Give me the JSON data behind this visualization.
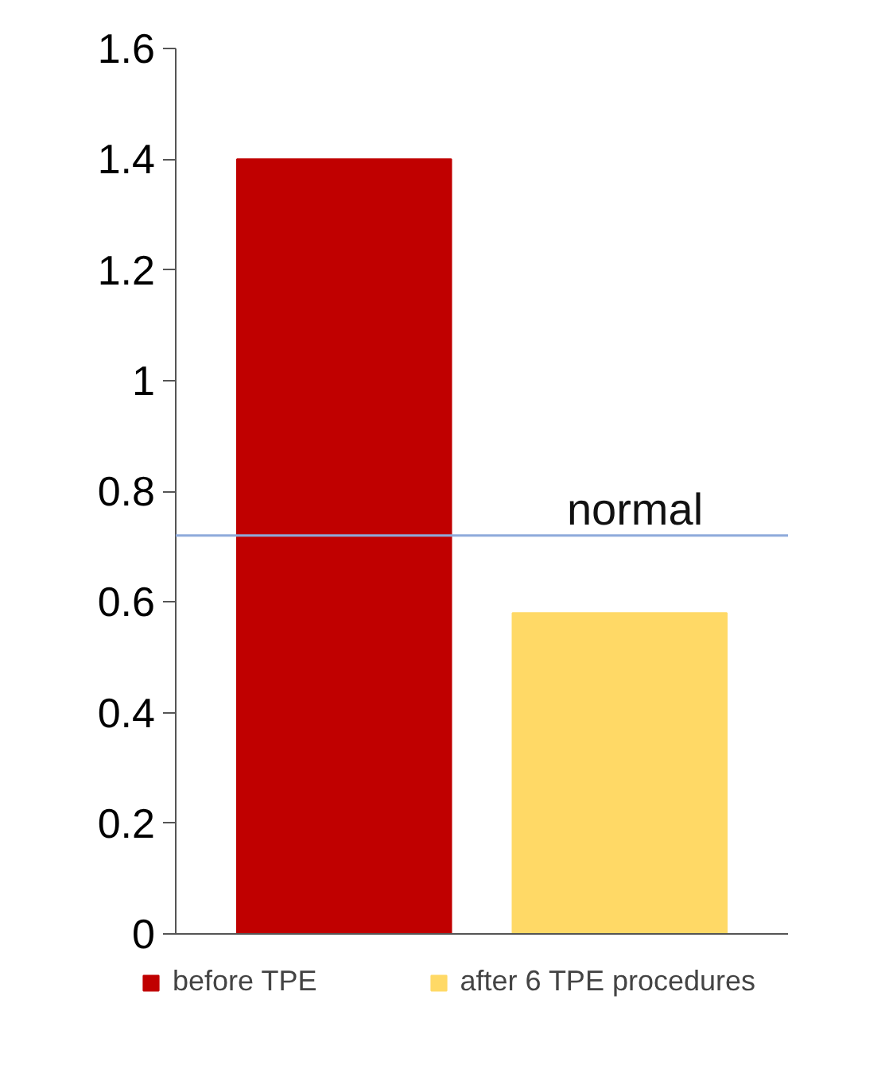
{
  "chart_data": {
    "type": "bar",
    "categories": [
      null
    ],
    "series": [
      {
        "name": "before TPE",
        "color": "#c00000",
        "values": [
          1.4
        ]
      },
      {
        "name": "after 6 TPE procedures",
        "color": "#ffd966",
        "values": [
          0.58
        ]
      }
    ],
    "ylim": [
      0,
      1.6
    ],
    "yticks": [
      0,
      0.2,
      0.4,
      0.6,
      0.8,
      1,
      1.2,
      1.4,
      1.6
    ],
    "ref_lines": [
      {
        "axis": "y",
        "value": 0.72,
        "label": "normal",
        "color": "#8eaadb"
      }
    ],
    "grid": false,
    "legend": "bottom"
  }
}
